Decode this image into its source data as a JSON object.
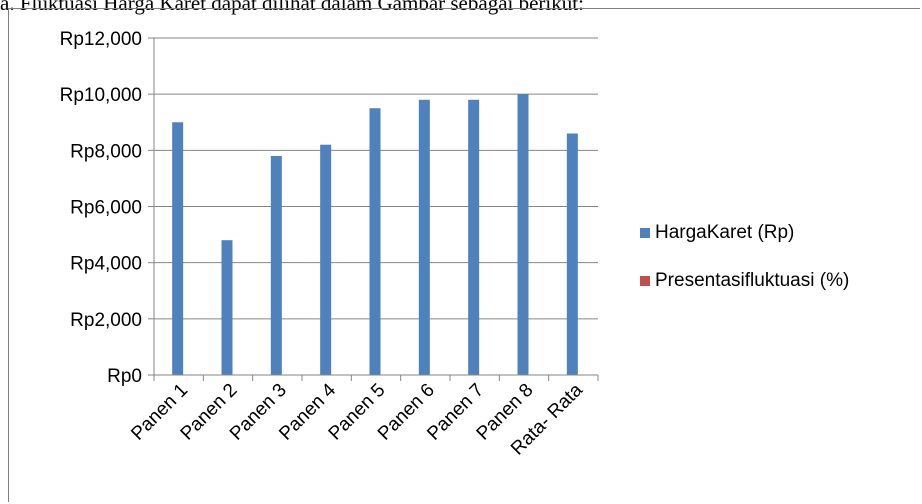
{
  "caption": "a. Fluktuasi Harga Karet dapat dilihat dalam Gambar sebagai berikut:",
  "colors": {
    "series1": "#4f81bd",
    "series2": "#c0504d",
    "grid": "#868686",
    "axis": "#868686"
  },
  "chart_data": {
    "type": "bar",
    "title": "",
    "xlabel": "",
    "ylabel": "",
    "categories": [
      "Panen 1",
      "Panen 2",
      "Panen 3",
      "Panen 4",
      "Panen 5",
      "Panen 6",
      "Panen 7",
      "Panen 8",
      "Rata- Rata"
    ],
    "series": [
      {
        "name": "HargaKaret (Rp)",
        "values": [
          9000,
          4800,
          7800,
          8200,
          9500,
          9800,
          9800,
          10000,
          8600
        ]
      },
      {
        "name": "Presentasifluktuasi (%)",
        "values": [
          0,
          0,
          0,
          0,
          0,
          0,
          0,
          0,
          0
        ]
      }
    ],
    "ylim": [
      0,
      12000
    ],
    "yticks": [
      0,
      2000,
      4000,
      6000,
      8000,
      10000,
      12000
    ],
    "ytick_labels": [
      "Rp0",
      "Rp2,000",
      "Rp4,000",
      "Rp6,000",
      "Rp8,000",
      "Rp10,000",
      "Rp12,000"
    ],
    "grid": true,
    "legend": "right"
  }
}
